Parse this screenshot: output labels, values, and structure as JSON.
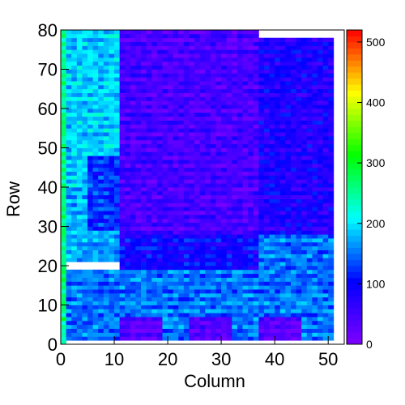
{
  "chart_data": {
    "type": "heatmap",
    "title": "",
    "xlabel": "Column",
    "ylabel": "Row",
    "xlim": [
      0,
      53
    ],
    "ylim": [
      0,
      80
    ],
    "x_ticks": [
      0,
      10,
      20,
      30,
      40,
      50
    ],
    "y_ticks": [
      0,
      10,
      20,
      30,
      40,
      50,
      60,
      70,
      80
    ],
    "colorbar": {
      "min": 0,
      "max": 520,
      "ticks": [
        0,
        100,
        200,
        300,
        400,
        500
      ],
      "palette": [
        "#7f00ff",
        "#3f00ff",
        "#0000ff",
        "#007fff",
        "#00ffff",
        "#00ff7f",
        "#00ff00",
        "#7fff00",
        "#ffff00",
        "#ff7f00",
        "#ff0000"
      ]
    },
    "grid": false,
    "legend": "colorbar-right",
    "nx": 53,
    "ny": 80,
    "regions": [
      {
        "x0": 0,
        "x1": 11,
        "y0": 40,
        "y1": 80,
        "value": 190
      },
      {
        "x0": 0,
        "x1": 11,
        "y0": 21,
        "y1": 40,
        "value": 175
      },
      {
        "x0": 5,
        "x1": 11,
        "y0": 29,
        "y1": 48,
        "value": 120
      },
      {
        "x0": 11,
        "x1": 37,
        "y0": 28,
        "y1": 80,
        "value": 45
      },
      {
        "x0": 37,
        "x1": 51,
        "y0": 28,
        "y1": 78,
        "value": 80
      },
      {
        "x0": 11,
        "x1": 37,
        "y0": 19,
        "y1": 28,
        "value": 95
      },
      {
        "x0": 37,
        "x1": 51,
        "y0": 19,
        "y1": 28,
        "value": 150
      },
      {
        "x0": 0,
        "x1": 51,
        "y0": 1,
        "y1": 19,
        "value": 150
      },
      {
        "x0": 11,
        "x1": 19,
        "y0": 1,
        "y1": 7,
        "value": 30
      },
      {
        "x0": 24,
        "x1": 32,
        "y0": 1,
        "y1": 7,
        "value": 30
      },
      {
        "x0": 37,
        "x1": 45,
        "y0": 1,
        "y1": 7,
        "value": 30
      },
      {
        "x0": 0,
        "x1": 1,
        "y0": 0,
        "y1": 80,
        "value": 260
      }
    ]
  }
}
